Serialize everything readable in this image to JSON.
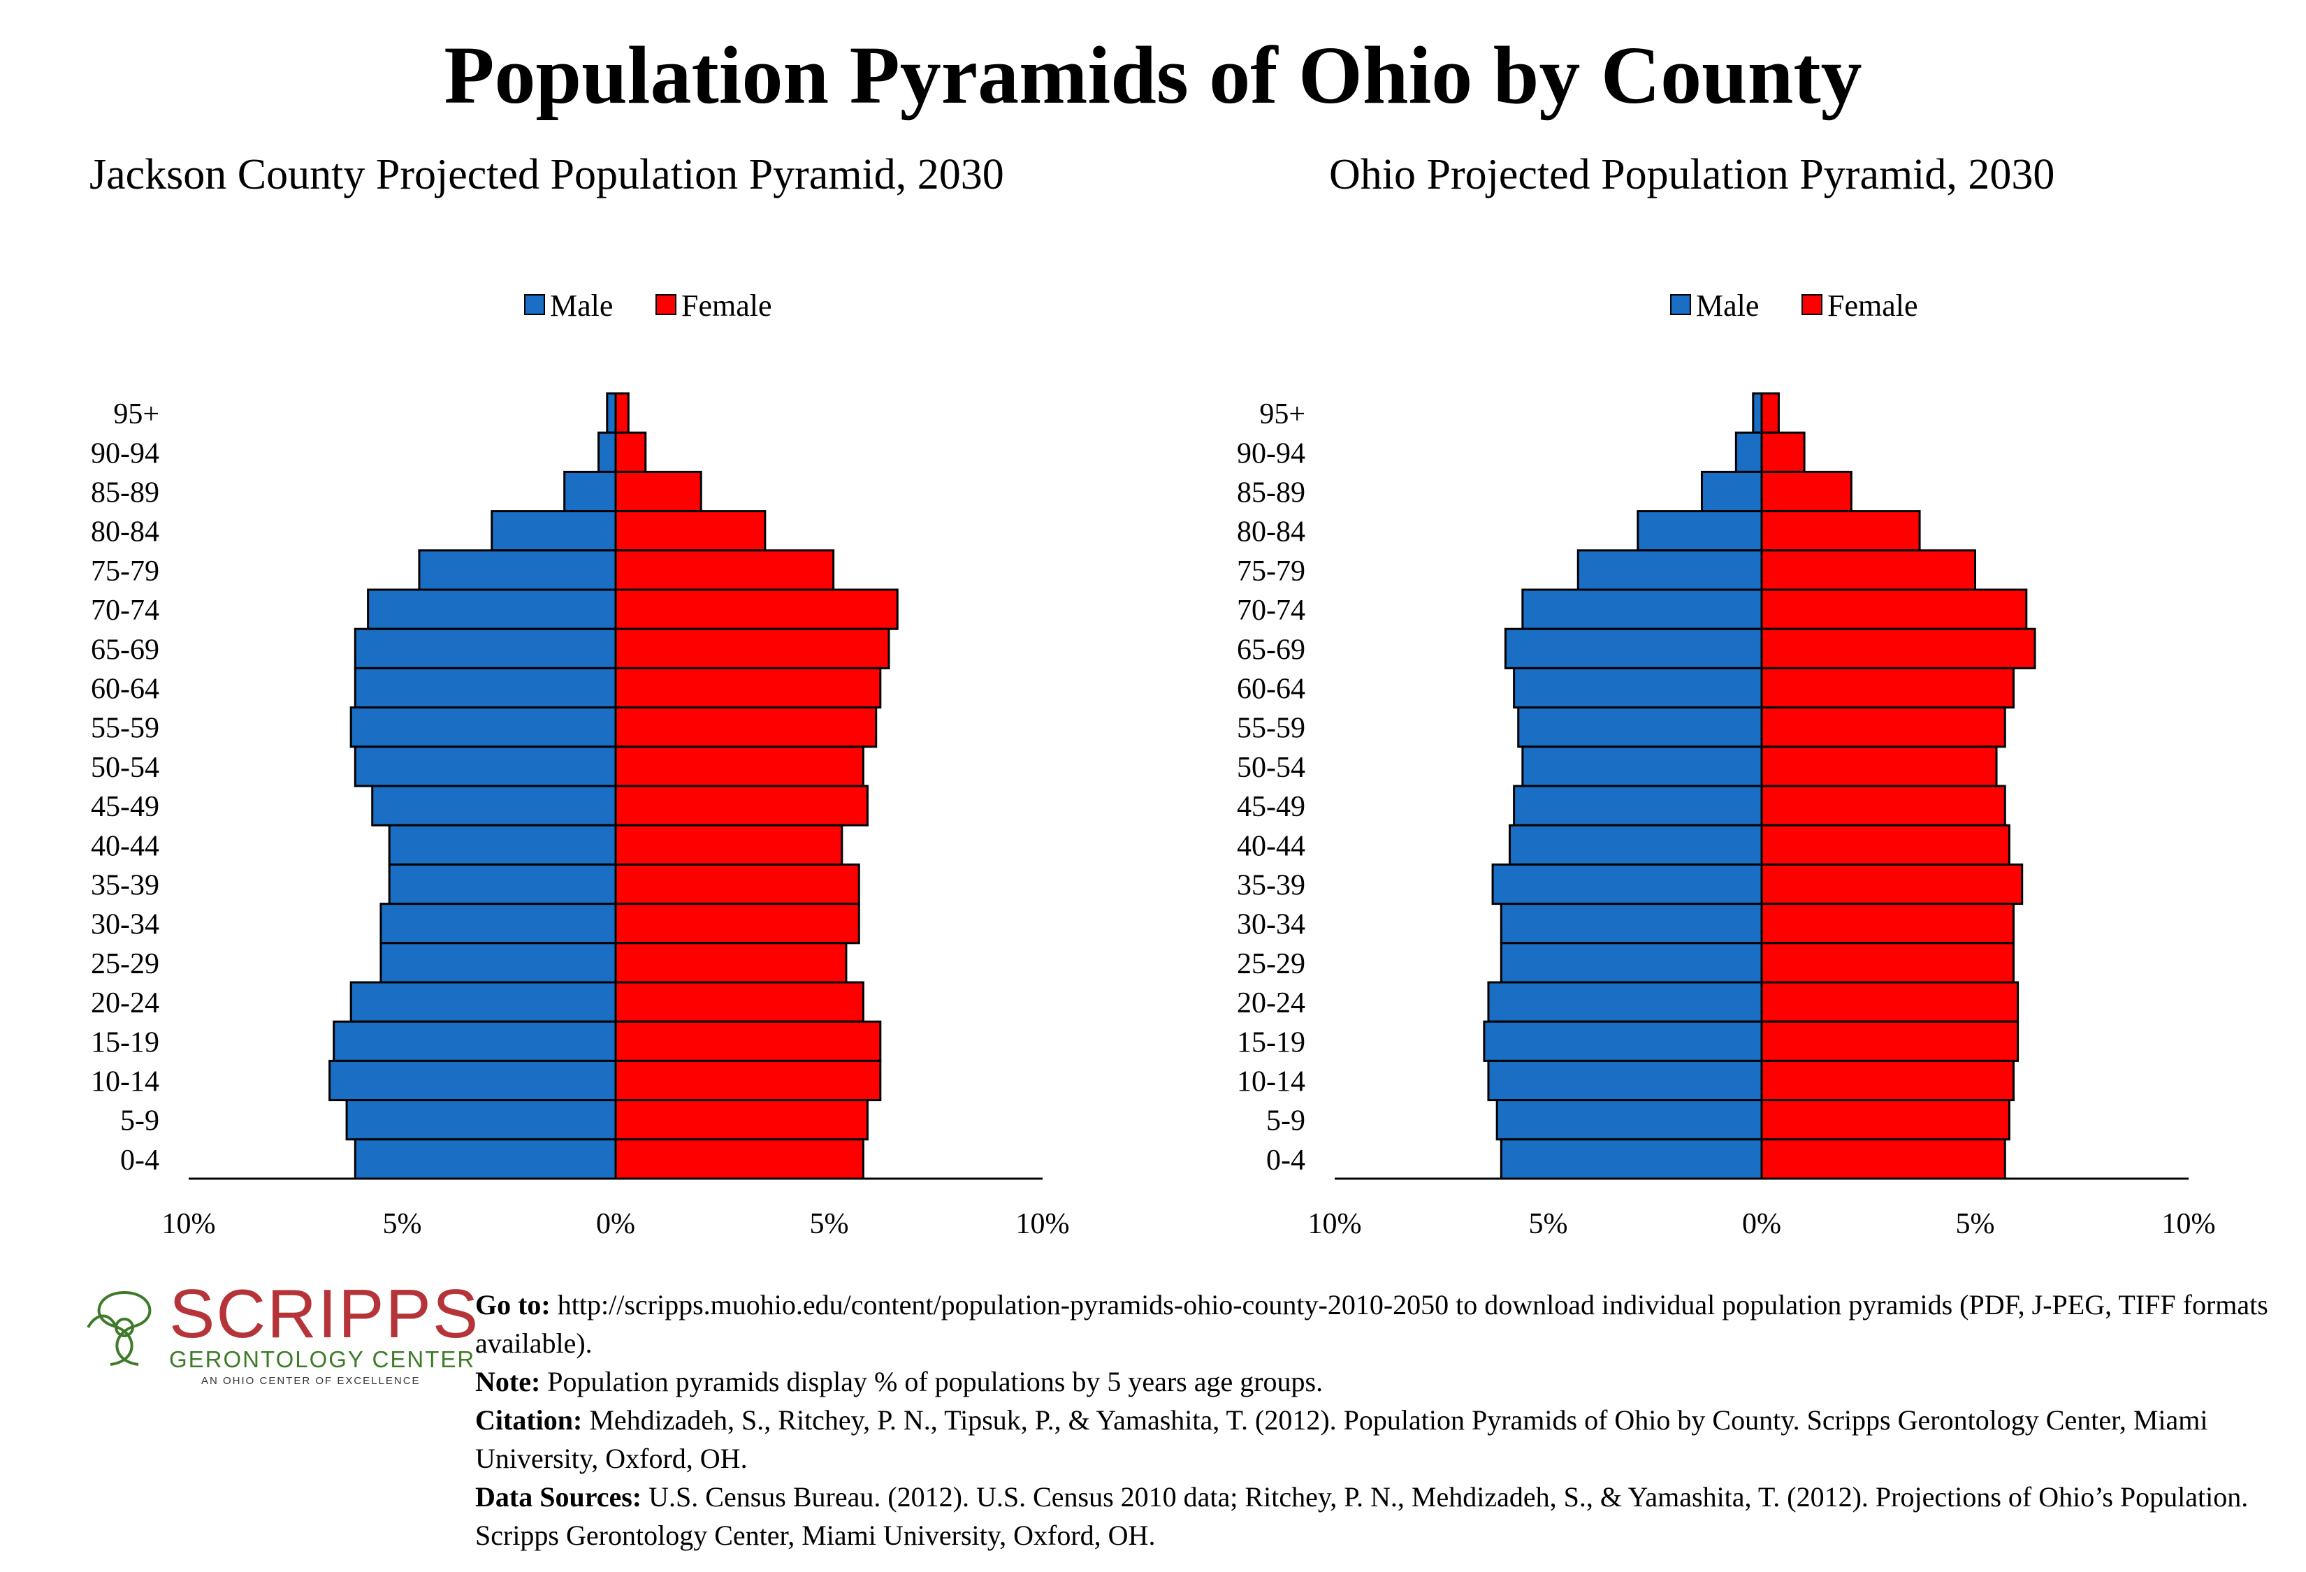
{
  "title": "Population Pyramids of Ohio by County",
  "chart_data": [
    {
      "type": "bar",
      "title": "Jackson County Projected Population Pyramid, 2030",
      "categories": [
        "95+",
        "90-94",
        "85-89",
        "80-84",
        "75-79",
        "70-74",
        "65-69",
        "60-64",
        "55-59",
        "50-54",
        "45-49",
        "40-44",
        "35-39",
        "30-34",
        "25-29",
        "20-24",
        "15-19",
        "10-14",
        "5-9",
        "0-4"
      ],
      "series": [
        {
          "name": "Male",
          "color": "#1a6ec4",
          "values": [
            0.2,
            0.4,
            1.2,
            2.9,
            4.6,
            5.8,
            6.1,
            6.1,
            6.2,
            6.1,
            5.7,
            5.3,
            5.3,
            5.5,
            5.5,
            6.2,
            6.6,
            6.7,
            6.3,
            6.1
          ]
        },
        {
          "name": "Female",
          "color": "#ff0000",
          "values": [
            0.3,
            0.7,
            2.0,
            3.5,
            5.1,
            6.6,
            6.4,
            6.2,
            6.1,
            5.8,
            5.9,
            5.3,
            5.7,
            5.7,
            5.4,
            5.8,
            6.2,
            6.2,
            5.9,
            5.8
          ]
        }
      ],
      "xlim": [
        -10,
        10
      ],
      "xticks": [
        "10%",
        "5%",
        "0%",
        "5%",
        "10%"
      ],
      "legend": "top-center"
    },
    {
      "type": "bar",
      "title": "Ohio Projected Population Pyramid, 2030",
      "categories": [
        "95+",
        "90-94",
        "85-89",
        "80-84",
        "75-79",
        "70-74",
        "65-69",
        "60-64",
        "55-59",
        "50-54",
        "45-49",
        "40-44",
        "35-39",
        "30-34",
        "25-29",
        "20-24",
        "15-19",
        "10-14",
        "5-9",
        "0-4"
      ],
      "series": [
        {
          "name": "Male",
          "color": "#1a6ec4",
          "values": [
            0.2,
            0.6,
            1.4,
            2.9,
            4.3,
            5.6,
            6.0,
            5.8,
            5.7,
            5.6,
            5.8,
            5.9,
            6.3,
            6.1,
            6.1,
            6.4,
            6.5,
            6.4,
            6.2,
            6.1
          ]
        },
        {
          "name": "Female",
          "color": "#ff0000",
          "values": [
            0.4,
            1.0,
            2.1,
            3.7,
            5.0,
            6.2,
            6.4,
            5.9,
            5.7,
            5.5,
            5.7,
            5.8,
            6.1,
            5.9,
            5.9,
            6.0,
            6.0,
            5.9,
            5.8,
            5.7
          ]
        }
      ],
      "xlim": [
        -10,
        10
      ],
      "xticks": [
        "10%",
        "5%",
        "0%",
        "5%",
        "10%"
      ],
      "legend": "top-center"
    }
  ],
  "logo": {
    "word": "SCRIPPS",
    "subtitle": "GERONTOLOGY CENTER",
    "tagline": "AN OHIO CENTER OF EXCELLENCE"
  },
  "footer": {
    "goto_label": "Go to:",
    "goto_text": "http://scripps.muohio.edu/content/population-pyramids-ohio-county-2010-2050 to download individual population pyramids (PDF, J-PEG, TIFF formats available).",
    "note_label": "Note:",
    "note_text": "Population pyramids display % of populations by 5 years age groups.",
    "citation_label": "Citation:",
    "citation_text": "Mehdizadeh, S., Ritchey, P. N., Tipsuk, P., & Yamashita, T. (2012). Population Pyramids of Ohio by County. Scripps Gerontology Center, Miami University, Oxford, OH.",
    "sources_label": "Data Sources:",
    "sources_text": "U.S. Census Bureau. (2012). U.S. Census 2010 data; Ritchey, P. N., Mehdizadeh, S., & Yamashita, T. (2012). Projections of Ohio’s Population. Scripps Gerontology Center, Miami University, Oxford, OH."
  }
}
